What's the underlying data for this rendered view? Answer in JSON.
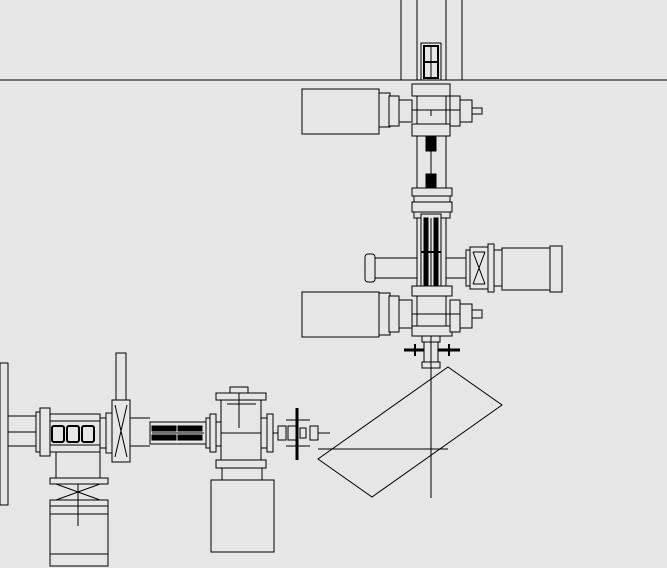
{
  "drawing": {
    "background": "#e6e6e6",
    "line_color": "#000000",
    "fill_color": "#e6e6e6",
    "components": [
      "upper-feedthrough-port",
      "upper-gate-valve",
      "upper-pump-body",
      "vertical-transfer-tube",
      "mid-bellows",
      "right-side-valve",
      "right-pump-cylinder",
      "left-side-port",
      "lower-gate-valve",
      "lower-pump-body",
      "bottom-cross-flange",
      "angled-sample-stage",
      "left-chamber-port",
      "left-bellows",
      "horizontal-gate-valve",
      "horizontal-transfer-tube",
      "lower-left-pump",
      "central-cross-chamber",
      "bottom-pump-body",
      "manual-valve-handle"
    ]
  }
}
